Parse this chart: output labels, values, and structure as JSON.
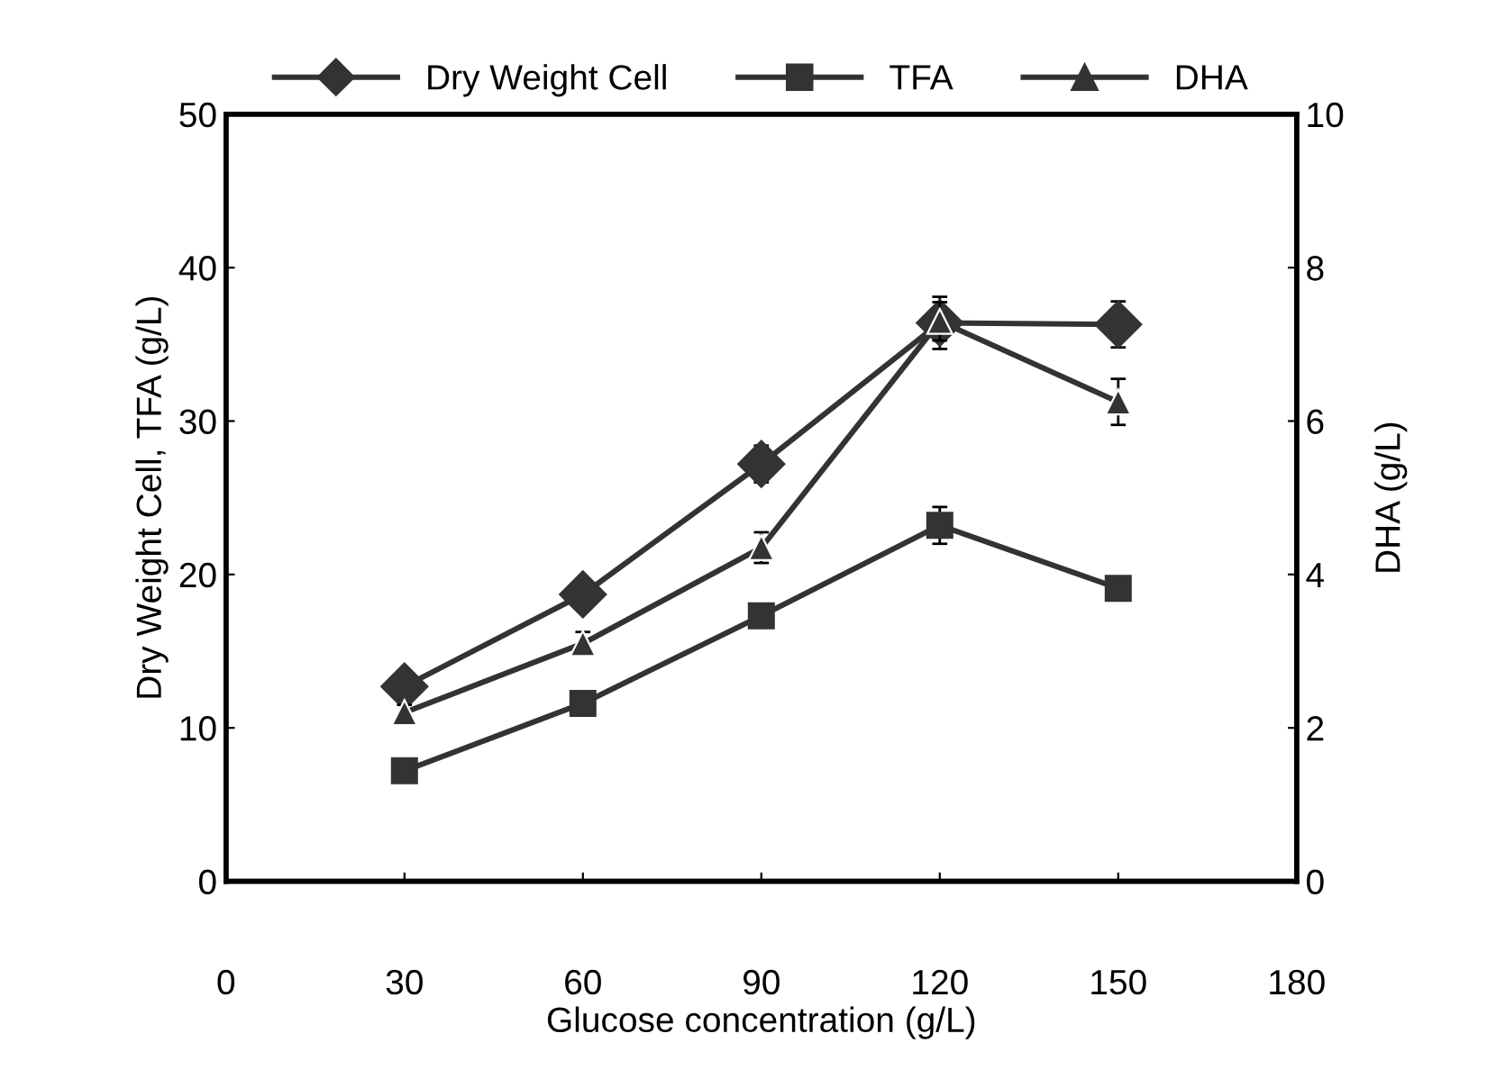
{
  "chart_data": {
    "type": "line",
    "xlabel": "Glucose concentration (g/L)",
    "ylabel": "Dry Weight Cell, TFA (g/L)",
    "y2label": "DHA (g/L)",
    "x": [
      30,
      60,
      90,
      120,
      150
    ],
    "series": [
      {
        "name": "Dry Weight Cell",
        "color": "#333333",
        "marker": "diamond",
        "values": [
          12.7,
          18.7,
          27.2,
          36.4,
          36.3
        ],
        "errors": [
          0.5,
          0.8,
          1.2,
          1.7,
          1.5
        ]
      },
      {
        "name": "TFA",
        "color": "#333333",
        "marker": "square",
        "values": [
          7.2,
          11.6,
          17.3,
          23.2,
          19.1
        ],
        "errors": [
          0.3,
          0.4,
          0.4,
          1.2,
          0.6
        ]
      },
      {
        "name": "DHA",
        "color": "#333333",
        "marker": "triangle",
        "axis": "y2",
        "values": [
          2.2,
          3.1,
          4.35,
          7.3,
          6.25
        ],
        "errors": [
          0.1,
          0.15,
          0.2,
          0.25,
          0.3
        ]
      }
    ],
    "xlim": [
      0,
      180
    ],
    "xticks": [
      0,
      30,
      60,
      90,
      120,
      150,
      180
    ],
    "ylim": [
      0,
      50
    ],
    "yticks": [
      0,
      10,
      20,
      30,
      40,
      50
    ],
    "y2lim": [
      0,
      10
    ],
    "y2ticks": [
      0,
      2,
      4,
      6,
      8,
      10
    ],
    "grid": false,
    "legend": "top",
    "line_style": "solid"
  }
}
